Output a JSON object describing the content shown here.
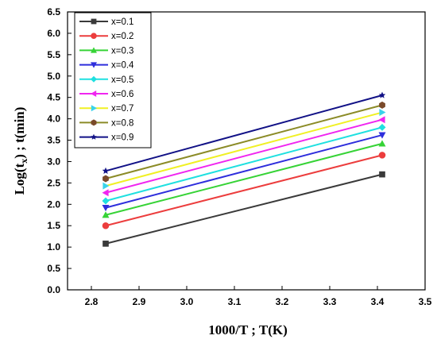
{
  "chart_data": {
    "type": "line",
    "xlabel": "1000/T ; T(K)",
    "ylabel": "Log(t",
    "ylabel_sub": "x",
    "ylabel_tail": ") ; t(min)",
    "xlim": [
      2.75,
      3.5
    ],
    "ylim": [
      0.0,
      6.5
    ],
    "x_ticks": [
      "2.8",
      "2.9",
      "3.0",
      "3.1",
      "3.2",
      "3.3",
      "3.4",
      "3.5"
    ],
    "y_ticks": [
      "0.0",
      "0.5",
      "1.0",
      "1.5",
      "2.0",
      "2.5",
      "3.0",
      "3.5",
      "4.0",
      "4.5",
      "5.0",
      "5.5",
      "6.0",
      "6.5"
    ],
    "grid": false,
    "legend_position": "top-left",
    "x": [
      2.83,
      3.41
    ],
    "series": [
      {
        "name": "x=0.1",
        "values": [
          1.08,
          2.7
        ],
        "color": "#3a3a3a",
        "marker": "square"
      },
      {
        "name": "x=0.2",
        "values": [
          1.5,
          3.15
        ],
        "color": "#ec3d3d",
        "marker": "circle"
      },
      {
        "name": "x=0.3",
        "values": [
          1.75,
          3.42
        ],
        "color": "#36d336",
        "marker": "triangle-up"
      },
      {
        "name": "x=0.4",
        "values": [
          1.92,
          3.62
        ],
        "color": "#2e2edc",
        "marker": "triangle-down"
      },
      {
        "name": "x=0.5",
        "values": [
          2.08,
          3.8
        ],
        "color": "#1fe0e0",
        "marker": "diamond"
      },
      {
        "name": "x=0.6",
        "values": [
          2.27,
          3.98
        ],
        "color": "#f026f0",
        "marker": "triangle-left"
      },
      {
        "name": "x=0.7",
        "values": [
          2.43,
          4.15
        ],
        "color": "#f0f024",
        "marker": "triangle-right"
      },
      {
        "name": "x=0.8",
        "values": [
          2.6,
          4.32
        ],
        "color": "#8b8b27",
        "marker": "hexagon"
      },
      {
        "name": "x=0.9",
        "values": [
          2.78,
          4.55
        ],
        "color": "#111186",
        "marker": "star"
      }
    ],
    "marker_colors": {
      "x=0.7": "#3ad3ea",
      "x=0.8": "#7a4a2a"
    }
  }
}
